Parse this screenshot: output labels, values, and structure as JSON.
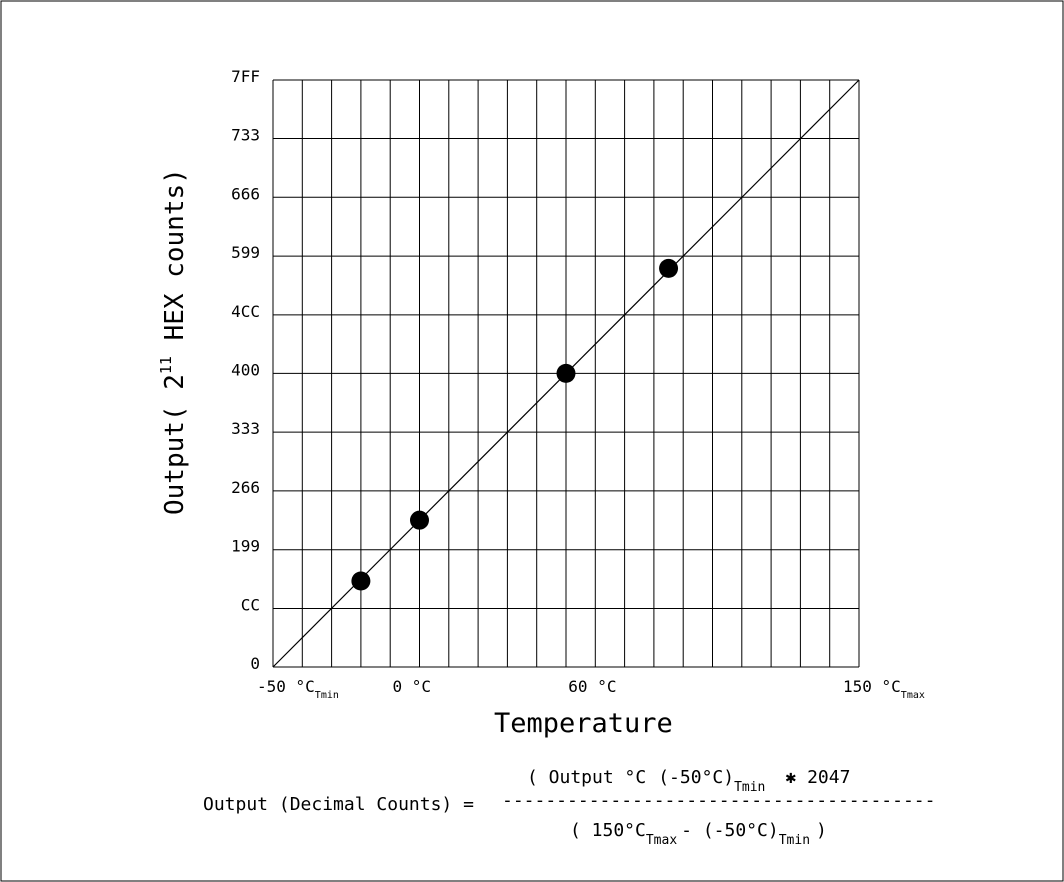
{
  "chart_data": {
    "type": "line",
    "xlabel": "Temperature",
    "ylabel": "Output( 2",
    "ylabel_exp": "11",
    "ylabel_tail": " HEX counts)",
    "y_ticks": [
      "0",
      "CC",
      "199",
      "266",
      "333",
      "400",
      "4CC",
      "599",
      "666",
      "733",
      "7FF"
    ],
    "y_tick_values": [
      0,
      204,
      409,
      614,
      819,
      1024,
      1228,
      1433,
      1638,
      1843,
      2047
    ],
    "ylim": [
      0,
      2047
    ],
    "xlim": [
      -50,
      150
    ],
    "x_ticks": [
      {
        "value": -50,
        "label": "-50 °C",
        "sub": "Tmin"
      },
      {
        "value": 0,
        "label": "0 °C",
        "sub": ""
      },
      {
        "value": 60,
        "label": "60 °C",
        "sub": ""
      },
      {
        "value": 150,
        "label": "150 °C",
        "sub": "Tmax"
      }
    ],
    "series": [
      {
        "x": [
          -50,
          150
        ],
        "y": [
          0,
          2047
        ]
      }
    ],
    "points": [
      {
        "x": -20,
        "y": 300
      },
      {
        "x": 0,
        "y": 512
      },
      {
        "x": 50,
        "y": 1024
      },
      {
        "x": 85,
        "y": 1390
      }
    ],
    "grid": true,
    "grid_x_step": 10
  },
  "formula": {
    "lhs": "Output (Decimal Counts) =",
    "num_open": "( Output °C",
    "num_minus": "(-50°C)",
    "num_minus_sub": "Tmin",
    "num_times": "✱ 2047",
    "dashes": "----------------------------------------",
    "den_open": "( 150°C",
    "den_sub1": "Tmax",
    "den_mid": "- (-50°C)",
    "den_sub2": "Tmin",
    "den_close": ")"
  }
}
